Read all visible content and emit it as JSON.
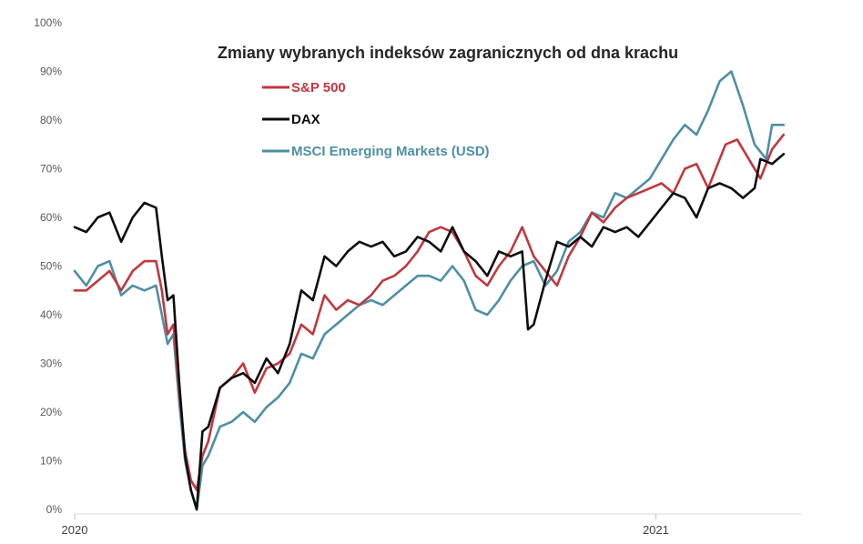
{
  "chart_data": {
    "type": "line",
    "title": "Zmiany wybranych indeksów zagranicznych od dna krachu",
    "xlabel": "",
    "ylabel": "",
    "x_ticks": [
      "2020",
      "2021"
    ],
    "x_range": [
      2020.0,
      2021.25
    ],
    "ylim": [
      0,
      100
    ],
    "y_ticks": [
      "0%",
      "10%",
      "20%",
      "30%",
      "40%",
      "50%",
      "60%",
      "70%",
      "80%",
      "90%",
      "100%"
    ],
    "grid": false,
    "legend_position": "top-left",
    "series": [
      {
        "name": "S&P 500",
        "color": "#c0383f",
        "x": [
          2020.0,
          2020.02,
          2020.04,
          2020.06,
          2020.08,
          2020.1,
          2020.12,
          2020.14,
          2020.15,
          2020.16,
          2020.17,
          2020.18,
          2020.19,
          2020.2,
          2020.21,
          2020.22,
          2020.23,
          2020.25,
          2020.27,
          2020.29,
          2020.31,
          2020.33,
          2020.35,
          2020.37,
          2020.39,
          2020.41,
          2020.43,
          2020.45,
          2020.47,
          2020.49,
          2020.51,
          2020.53,
          2020.55,
          2020.57,
          2020.59,
          2020.61,
          2020.63,
          2020.65,
          2020.67,
          2020.69,
          2020.71,
          2020.73,
          2020.75,
          2020.77,
          2020.79,
          2020.81,
          2020.83,
          2020.85,
          2020.87,
          2020.89,
          2020.91,
          2020.93,
          2020.95,
          2020.97,
          2020.99,
          2021.01,
          2021.03,
          2021.05,
          2021.07,
          2021.09,
          2021.11,
          2021.12,
          2021.14,
          2021.16,
          2021.18,
          2021.2,
          2021.22
        ],
        "values": [
          45,
          45,
          47,
          49,
          45,
          49,
          51,
          51,
          45,
          36,
          38,
          24,
          12,
          6,
          4,
          11,
          14,
          25,
          27,
          30,
          24,
          29,
          30,
          32,
          38,
          36,
          44,
          41,
          43,
          42,
          44,
          47,
          48,
          50,
          53,
          57,
          58,
          57,
          53,
          48,
          46,
          50,
          53,
          58,
          52,
          49,
          46,
          52,
          56,
          61,
          59,
          62,
          64,
          65,
          66,
          67,
          65,
          70,
          71,
          66,
          72,
          75,
          76,
          72,
          68,
          74,
          77
        ]
      },
      {
        "name": "DAX",
        "color": "#0d0d0d",
        "x": [
          2020.0,
          2020.02,
          2020.04,
          2020.06,
          2020.08,
          2020.1,
          2020.12,
          2020.14,
          2020.15,
          2020.16,
          2020.17,
          2020.18,
          2020.19,
          2020.2,
          2020.21,
          2020.22,
          2020.23,
          2020.25,
          2020.27,
          2020.29,
          2020.31,
          2020.33,
          2020.35,
          2020.37,
          2020.39,
          2020.41,
          2020.43,
          2020.45,
          2020.47,
          2020.49,
          2020.51,
          2020.53,
          2020.55,
          2020.57,
          2020.59,
          2020.61,
          2020.63,
          2020.65,
          2020.67,
          2020.69,
          2020.71,
          2020.73,
          2020.75,
          2020.77,
          2020.78,
          2020.79,
          2020.81,
          2020.83,
          2020.85,
          2020.87,
          2020.89,
          2020.91,
          2020.93,
          2020.95,
          2020.97,
          2020.99,
          2021.01,
          2021.03,
          2021.05,
          2021.07,
          2021.09,
          2021.11,
          2021.13,
          2021.15,
          2021.17,
          2021.18,
          2021.2,
          2021.22
        ],
        "values": [
          58,
          57,
          60,
          61,
          55,
          60,
          63,
          62,
          52,
          43,
          44,
          26,
          11,
          4,
          0,
          16,
          17,
          25,
          27,
          28,
          26,
          31,
          28,
          34,
          45,
          43,
          52,
          50,
          53,
          55,
          54,
          55,
          52,
          53,
          56,
          55,
          53,
          58,
          53,
          51,
          48,
          53,
          52,
          53,
          37,
          38,
          47,
          55,
          54,
          56,
          54,
          58,
          57,
          58,
          56,
          59,
          62,
          65,
          64,
          60,
          66,
          67,
          66,
          64,
          66,
          72,
          71,
          73
        ]
      },
      {
        "name": "MSCI Emerging Markets (USD)",
        "color": "#4d8fa6",
        "x": [
          2020.0,
          2020.02,
          2020.04,
          2020.06,
          2020.08,
          2020.1,
          2020.12,
          2020.14,
          2020.15,
          2020.16,
          2020.17,
          2020.18,
          2020.19,
          2020.2,
          2020.21,
          2020.22,
          2020.23,
          2020.25,
          2020.27,
          2020.29,
          2020.31,
          2020.33,
          2020.35,
          2020.37,
          2020.39,
          2020.41,
          2020.43,
          2020.45,
          2020.47,
          2020.49,
          2020.51,
          2020.53,
          2020.55,
          2020.57,
          2020.59,
          2020.61,
          2020.63,
          2020.65,
          2020.67,
          2020.69,
          2020.71,
          2020.73,
          2020.75,
          2020.77,
          2020.79,
          2020.81,
          2020.83,
          2020.85,
          2020.87,
          2020.89,
          2020.91,
          2020.93,
          2020.95,
          2020.97,
          2020.99,
          2021.01,
          2021.03,
          2021.05,
          2021.07,
          2021.09,
          2021.11,
          2021.13,
          2021.15,
          2021.17,
          2021.19,
          2021.2,
          2021.22
        ],
        "values": [
          49,
          46,
          50,
          51,
          44,
          46,
          45,
          46,
          40,
          34,
          36,
          22,
          10,
          4,
          0,
          9,
          11,
          17,
          18,
          20,
          18,
          21,
          23,
          26,
          32,
          31,
          36,
          38,
          40,
          42,
          43,
          42,
          44,
          46,
          48,
          48,
          47,
          50,
          47,
          41,
          40,
          43,
          47,
          50,
          51,
          46,
          49,
          55,
          57,
          61,
          60,
          65,
          64,
          66,
          68,
          72,
          76,
          79,
          77,
          82,
          88,
          90,
          83,
          75,
          72,
          79,
          79
        ]
      }
    ]
  }
}
